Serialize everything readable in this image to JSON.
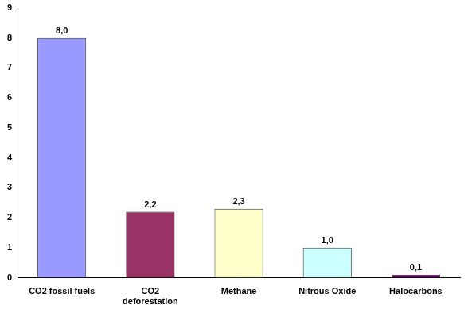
{
  "chart_data": {
    "type": "bar",
    "categories": [
      "CO2 fossil fuels",
      "CO2 deforestation",
      "Methane",
      "Nitrous Oxide",
      "Halocarbons"
    ],
    "values": [
      8.0,
      2.2,
      2.3,
      1.0,
      0.1
    ],
    "value_labels": [
      "8,0",
      "2,2",
      "2,3",
      "1,0",
      "0,1"
    ],
    "colors": [
      "#9999ff",
      "#993366",
      "#ffffcc",
      "#ccffff",
      "#660066"
    ],
    "ylim": [
      0,
      9
    ],
    "yticks": [
      0,
      1,
      2,
      3,
      4,
      5,
      6,
      7,
      8,
      9
    ],
    "grid": false,
    "data_labels": true
  }
}
